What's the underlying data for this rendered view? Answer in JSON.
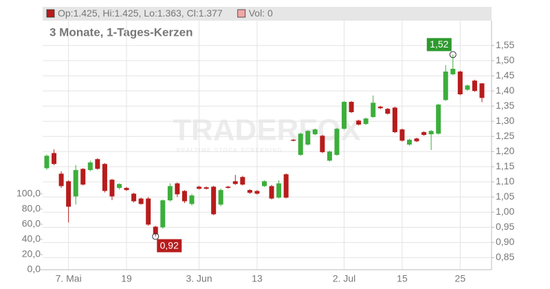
{
  "chart_data": {
    "type": "candlestick",
    "title": "3 Monate, 1-Tages-Kerzen",
    "legend": [
      {
        "name": "Op:1.425, Hi:1.425, Lo:1.363, Cl:1.377",
        "color": "#b71c1c"
      },
      {
        "name": "Vol: 0",
        "color": "#f2a6a6"
      }
    ],
    "watermark": {
      "title": "TRADERFOX",
      "subtitle": "REALTIME STOCK SCREENING"
    },
    "categories": [
      null,
      null,
      null,
      "7. Mai",
      null,
      null,
      null,
      null,
      null,
      null,
      null,
      "19",
      null,
      null,
      null,
      null,
      null,
      null,
      null,
      null,
      null,
      "3. Jun",
      null,
      null,
      null,
      null,
      null,
      null,
      null,
      "13",
      null,
      null,
      null,
      null,
      null,
      null,
      null,
      null,
      null,
      null,
      null,
      "2. Jul",
      null,
      null,
      null,
      null,
      null,
      null,
      null,
      "15",
      null,
      null,
      null,
      null,
      null,
      null,
      null,
      "25",
      null,
      null,
      null
    ],
    "open": [
      1.145,
      1.195,
      1.127,
      1.102,
      1.052,
      1.143,
      1.139,
      1.175,
      1.159,
      1.107,
      1.08,
      1.08,
      1.061,
      1.045,
      1.045,
      0.952,
      0.95,
      1.039,
      1.095,
      1.07,
      1.027,
      1.084,
      1.082,
      1.084,
      1.025,
      1.084,
      1.102,
      1.116,
      1.073,
      1.07,
      1.086,
      1.086,
      1.048,
      1.125,
      1.239,
      1.189,
      1.223,
      1.257,
      1.252,
      1.17,
      1.189,
      1.275,
      1.364,
      1.302,
      1.291,
      1.314,
      1.348,
      1.341,
      1.345,
      1.273,
      1.223,
      1.243,
      1.264,
      1.257,
      1.259,
      1.37,
      1.455,
      1.464,
      1.404,
      1.434,
      1.425
    ],
    "high": [
      1.19,
      1.207,
      1.135,
      1.105,
      1.155,
      1.145,
      1.17,
      1.178,
      1.162,
      1.11,
      1.095,
      1.083,
      1.064,
      1.048,
      1.05,
      0.955,
      1.042,
      1.095,
      1.098,
      1.073,
      1.06,
      1.087,
      1.085,
      1.087,
      1.078,
      1.087,
      1.123,
      1.12,
      1.076,
      1.073,
      1.105,
      1.09,
      1.105,
      1.128,
      1.241,
      1.262,
      1.27,
      1.276,
      1.255,
      1.203,
      1.278,
      1.367,
      1.367,
      1.305,
      1.312,
      1.385,
      1.351,
      1.344,
      1.348,
      1.276,
      1.242,
      1.246,
      1.267,
      1.271,
      1.358,
      1.485,
      1.52,
      1.467,
      1.421,
      1.437,
      1.425
    ],
    "low": [
      1.14,
      1.155,
      1.08,
      0.966,
      1.025,
      1.088,
      1.135,
      1.14,
      1.065,
      1.04,
      1.075,
      1.07,
      1.032,
      1.025,
      0.955,
      0.92,
      0.945,
      1.035,
      1.05,
      1.03,
      1.022,
      1.075,
      1.075,
      0.99,
      1.02,
      1.078,
      1.09,
      1.088,
      1.06,
      1.058,
      1.083,
      1.042,
      1.045,
      1.045,
      1.234,
      1.186,
      1.22,
      1.254,
      1.195,
      1.167,
      1.186,
      1.272,
      1.327,
      1.286,
      1.288,
      1.311,
      1.34,
      1.322,
      1.261,
      1.233,
      1.22,
      1.231,
      1.252,
      1.205,
      1.256,
      1.367,
      1.452,
      1.386,
      1.401,
      1.397,
      1.363
    ],
    "close": [
      1.186,
      1.159,
      1.086,
      1.018,
      1.139,
      1.091,
      1.164,
      1.143,
      1.07,
      1.052,
      1.093,
      1.073,
      1.036,
      1.027,
      0.959,
      0.927,
      1.039,
      1.086,
      1.059,
      1.036,
      1.055,
      1.077,
      1.077,
      0.993,
      1.073,
      1.08,
      1.093,
      1.091,
      1.064,
      1.061,
      1.102,
      1.045,
      1.095,
      1.048,
      1.236,
      1.259,
      1.268,
      1.273,
      1.198,
      1.2,
      1.275,
      1.364,
      1.33,
      1.289,
      1.309,
      1.361,
      1.343,
      1.325,
      1.264,
      1.236,
      1.239,
      1.234,
      1.255,
      1.268,
      1.355,
      1.464,
      1.473,
      1.389,
      1.418,
      1.4,
      1.377
    ],
    "up_color": "#3cae3c",
    "down_color": "#b71c1c",
    "ylim": [
      0.81,
      1.632
    ],
    "yticks": [
      {
        "value": 0.85,
        "label": "0,85"
      },
      {
        "value": 0.9,
        "label": "0,90"
      },
      {
        "value": 0.95,
        "label": "0,95"
      },
      {
        "value": 1.0,
        "label": "1,00"
      },
      {
        "value": 1.05,
        "label": "1,05"
      },
      {
        "value": 1.1,
        "label": "1,10"
      },
      {
        "value": 1.15,
        "label": "1,15"
      },
      {
        "value": 1.2,
        "label": "1,20"
      },
      {
        "value": 1.25,
        "label": "1,25"
      },
      {
        "value": 1.3,
        "label": "1,30"
      },
      {
        "value": 1.35,
        "label": "1,35"
      },
      {
        "value": 1.4,
        "label": "1,40"
      },
      {
        "value": 1.45,
        "label": "1,45"
      },
      {
        "value": 1.5,
        "label": "1,50"
      },
      {
        "value": 1.55,
        "label": "1,55"
      }
    ],
    "vol_ylim": [
      0,
      329
    ],
    "vol_yticks": [
      {
        "value": 0,
        "label": "0,0"
      },
      {
        "value": 20,
        "label": "20,0"
      },
      {
        "value": 40,
        "label": "40,0"
      },
      {
        "value": 60,
        "label": "60,0"
      },
      {
        "value": 80,
        "label": "80,0"
      },
      {
        "value": 100,
        "label": "100,0"
      }
    ],
    "annotations": [
      {
        "index": 15,
        "value": 0.92,
        "label": "0,92",
        "color": "#b71c1c"
      },
      {
        "index": 56,
        "value": 1.52,
        "label": "1,52",
        "color": "#2e9a2e"
      }
    ],
    "grid": true
  }
}
